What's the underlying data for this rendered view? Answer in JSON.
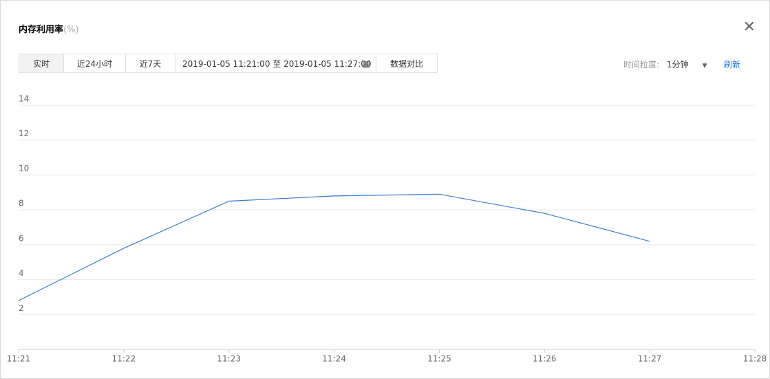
{
  "header": {
    "title": "内存利用率",
    "unit": "(%)"
  },
  "toolbar": {
    "ranges": [
      "实时",
      "近24小时",
      "近7天"
    ],
    "date_range": "2019-01-05 11:21:00 至 2019-01-05 11:27:00",
    "compare": "数据对比",
    "granularity_label": "时间粒度:",
    "granularity": "1分钟",
    "refresh": "刷新"
  },
  "chart_data": {
    "type": "line",
    "categories": [
      "11:21",
      "11:22",
      "11:23",
      "11:24",
      "11:25",
      "11:26",
      "11:27",
      "11:28"
    ],
    "series": [
      {
        "name": "内存利用率",
        "color": "#3a7bd5",
        "values": [
          2.8,
          5.8,
          8.5,
          8.8,
          8.9,
          7.8,
          6.2,
          null
        ]
      }
    ],
    "ylim": [
      0,
      14
    ],
    "yticks": [
      2,
      4,
      6,
      8,
      10,
      12,
      14
    ],
    "grid": true
  }
}
